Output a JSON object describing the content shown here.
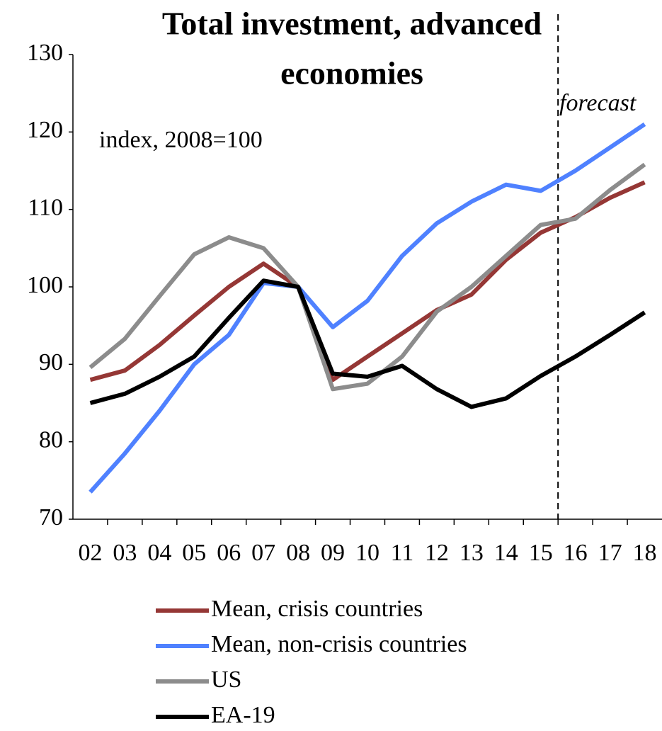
{
  "chart_data": {
    "type": "line",
    "title": [
      "Total investment, advanced",
      "economies"
    ],
    "subtitle": "index, 2008=100",
    "annotation": "forecast",
    "forecast_from": "16",
    "categories": [
      "02",
      "03",
      "04",
      "05",
      "06",
      "07",
      "08",
      "09",
      "10",
      "11",
      "12",
      "13",
      "14",
      "15",
      "16",
      "17",
      "18"
    ],
    "series": [
      {
        "name": "Mean, crisis countries",
        "color": "#953735",
        "values": [
          88,
          89.2,
          92.5,
          96.3,
          100,
          103,
          100,
          88,
          91,
          94,
          97,
          99,
          103.5,
          107,
          109,
          111.5,
          113.5
        ]
      },
      {
        "name": "Mean, non-crisis countries",
        "color": "#4f81ff",
        "values": [
          73.5,
          78.5,
          84,
          90,
          93.8,
          100.5,
          100,
          94.8,
          98.2,
          104,
          108.2,
          111,
          113.2,
          112.4,
          115,
          118,
          121
        ]
      },
      {
        "name": "US",
        "color": "#8c8c8c",
        "values": [
          89.6,
          93.3,
          98.8,
          104.2,
          106.4,
          105,
          100,
          86.8,
          87.5,
          91,
          96.8,
          100,
          104,
          108,
          108.8,
          112.5,
          115.8
        ]
      },
      {
        "name": "EA-19",
        "color": "#000000",
        "values": [
          85,
          86.2,
          88.4,
          91,
          96,
          100.8,
          100,
          88.8,
          88.4,
          89.8,
          86.8,
          84.5,
          85.6,
          88.5,
          91,
          93.8,
          96.7
        ]
      }
    ],
    "ylim": [
      70,
      130
    ],
    "yticks": [
      70,
      80,
      90,
      100,
      110,
      120,
      130
    ],
    "grid": false
  }
}
